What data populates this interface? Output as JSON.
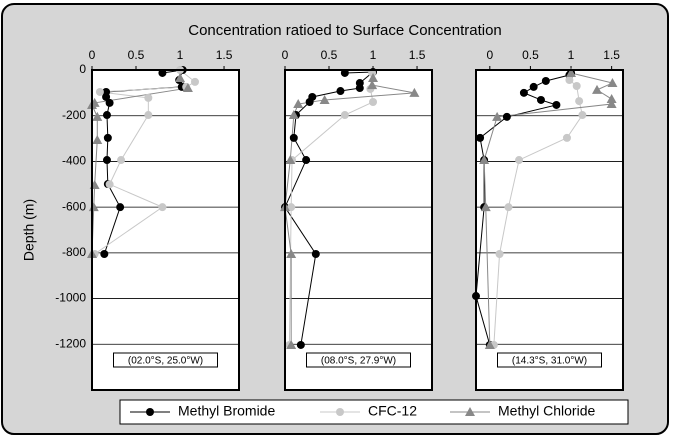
{
  "figure": {
    "title": "Concentration ratioed to Surface Concentration",
    "y_label": "Depth (m)"
  },
  "chart_data": [
    {
      "type": "line",
      "label": "(02.0°S, 25.0°W)",
      "xlim": [
        0,
        1.67
      ],
      "xticks": [
        0,
        0.5,
        1,
        1.5
      ],
      "ylim": [
        -1400,
        0
      ],
      "yticks": [
        0,
        -200,
        -400,
        -600,
        -800,
        -1000,
        -1200
      ],
      "grid": true,
      "series": [
        {
          "name": "Methyl Bromide",
          "color": "#000000",
          "marker": "circle",
          "x": [
            0.8,
            1.03,
            0.99,
            1.02,
            0.16,
            0.16,
            0.2,
            0.17,
            0.18,
            0.17,
            0.18,
            0.32,
            0.14
          ],
          "y": [
            -13,
            0,
            -44,
            -74,
            -96,
            -118,
            -144,
            -197,
            -297,
            -394,
            -499,
            -600,
            -805
          ]
        },
        {
          "name": "CFC-12",
          "color": "#c8c8c8",
          "marker": "circle",
          "x": [
            1.0,
            1.17,
            1.07,
            0.09,
            0.64,
            0.64,
            0.33,
            0.2,
            0.8,
            0.03
          ],
          "y": [
            0,
            -52,
            -74,
            -96,
            -122,
            -197,
            -394,
            -500,
            -600,
            -805
          ]
        },
        {
          "name": "Methyl Chloride",
          "color": "#888888",
          "marker": "triangle",
          "x": [
            1.0,
            1.09,
            0.03,
            0.0,
            0.06,
            0.06,
            0.03,
            0.02,
            0.0
          ],
          "y": [
            -35,
            -79,
            -144,
            -153,
            -205,
            -306,
            -503,
            -600,
            -805
          ]
        }
      ]
    },
    {
      "type": "line",
      "label": "(08.0°S, 27.9°W)",
      "xlim": [
        0,
        1.67
      ],
      "xticks": [
        0,
        0.5,
        1,
        1.5
      ],
      "ylim": [
        -1400,
        0
      ],
      "yticks": [
        0,
        -200,
        -400,
        -600,
        -800,
        -1000,
        -1200
      ],
      "grid": true,
      "series": [
        {
          "name": "Methyl Bromide",
          "color": "#000000",
          "marker": "circle",
          "x": [
            0.68,
            1.0,
            0.85,
            0.85,
            0.63,
            0.31,
            0.28,
            0.125,
            0.1,
            0.24,
            0.0,
            0.35,
            0.18
          ],
          "y": [
            -13,
            -9,
            -57,
            -79,
            -92,
            -118,
            -140,
            -197,
            -297,
            -394,
            -600,
            -805,
            -1203
          ]
        },
        {
          "name": "CFC-12",
          "color": "#c8c8c8",
          "marker": "circle",
          "x": [
            0.99,
            0.97,
            1.0,
            0.68,
            0.08,
            0.07,
            0.05
          ],
          "y": [
            -13,
            -83,
            -140,
            -197,
            -394,
            -600,
            -1203
          ]
        },
        {
          "name": "Methyl Chloride",
          "color": "#888888",
          "marker": "triangle",
          "x": [
            1.0,
            0.99,
            1.47,
            0.45,
            0.15,
            0.1,
            0.06,
            0.0,
            0.07,
            0.07
          ],
          "y": [
            -35,
            -66,
            -100,
            -131,
            -149,
            -197,
            -394,
            -600,
            -805,
            -1203
          ]
        }
      ]
    },
    {
      "type": "line",
      "label": "(14.3°S, 31.0°W)",
      "xlim": [
        -0.17,
        1.64
      ],
      "xticks": [
        0,
        0.5,
        1,
        1.5
      ],
      "ylim": [
        -1400,
        0
      ],
      "yticks": [
        0,
        -200,
        -400,
        -600,
        -800,
        -1000,
        -1200
      ],
      "grid": true,
      "series": [
        {
          "name": "Methyl Bromide",
          "color": "#000000",
          "marker": "circle",
          "x": [
            1.0,
            0.98,
            0.69,
            0.54,
            0.42,
            0.63,
            0.82,
            0.21,
            -0.12,
            -0.07,
            -0.07,
            -0.17,
            0.0
          ],
          "y": [
            -13,
            -22,
            -48,
            -74,
            -100,
            -131,
            -153,
            -205,
            -297,
            -394,
            -600,
            -989,
            -1203
          ]
        },
        {
          "name": "CFC-12",
          "color": "#c8c8c8",
          "marker": "circle",
          "x": [
            0.98,
            1.07,
            1.1,
            1.14,
            0.95,
            0.36,
            0.23,
            0.12,
            0.05
          ],
          "y": [
            -44,
            -70,
            -136,
            -197,
            -297,
            -394,
            -600,
            -805,
            -1203
          ]
        },
        {
          "name": "Methyl Chloride",
          "color": "#888888",
          "marker": "triangle",
          "x": [
            1.0,
            1.51,
            1.32,
            1.5,
            1.5,
            0.09,
            -0.07,
            -0.05,
            0.0
          ],
          "y": [
            -13,
            -57,
            -87,
            -127,
            -149,
            -205,
            -394,
            -600,
            -1203
          ]
        }
      ]
    }
  ]
}
